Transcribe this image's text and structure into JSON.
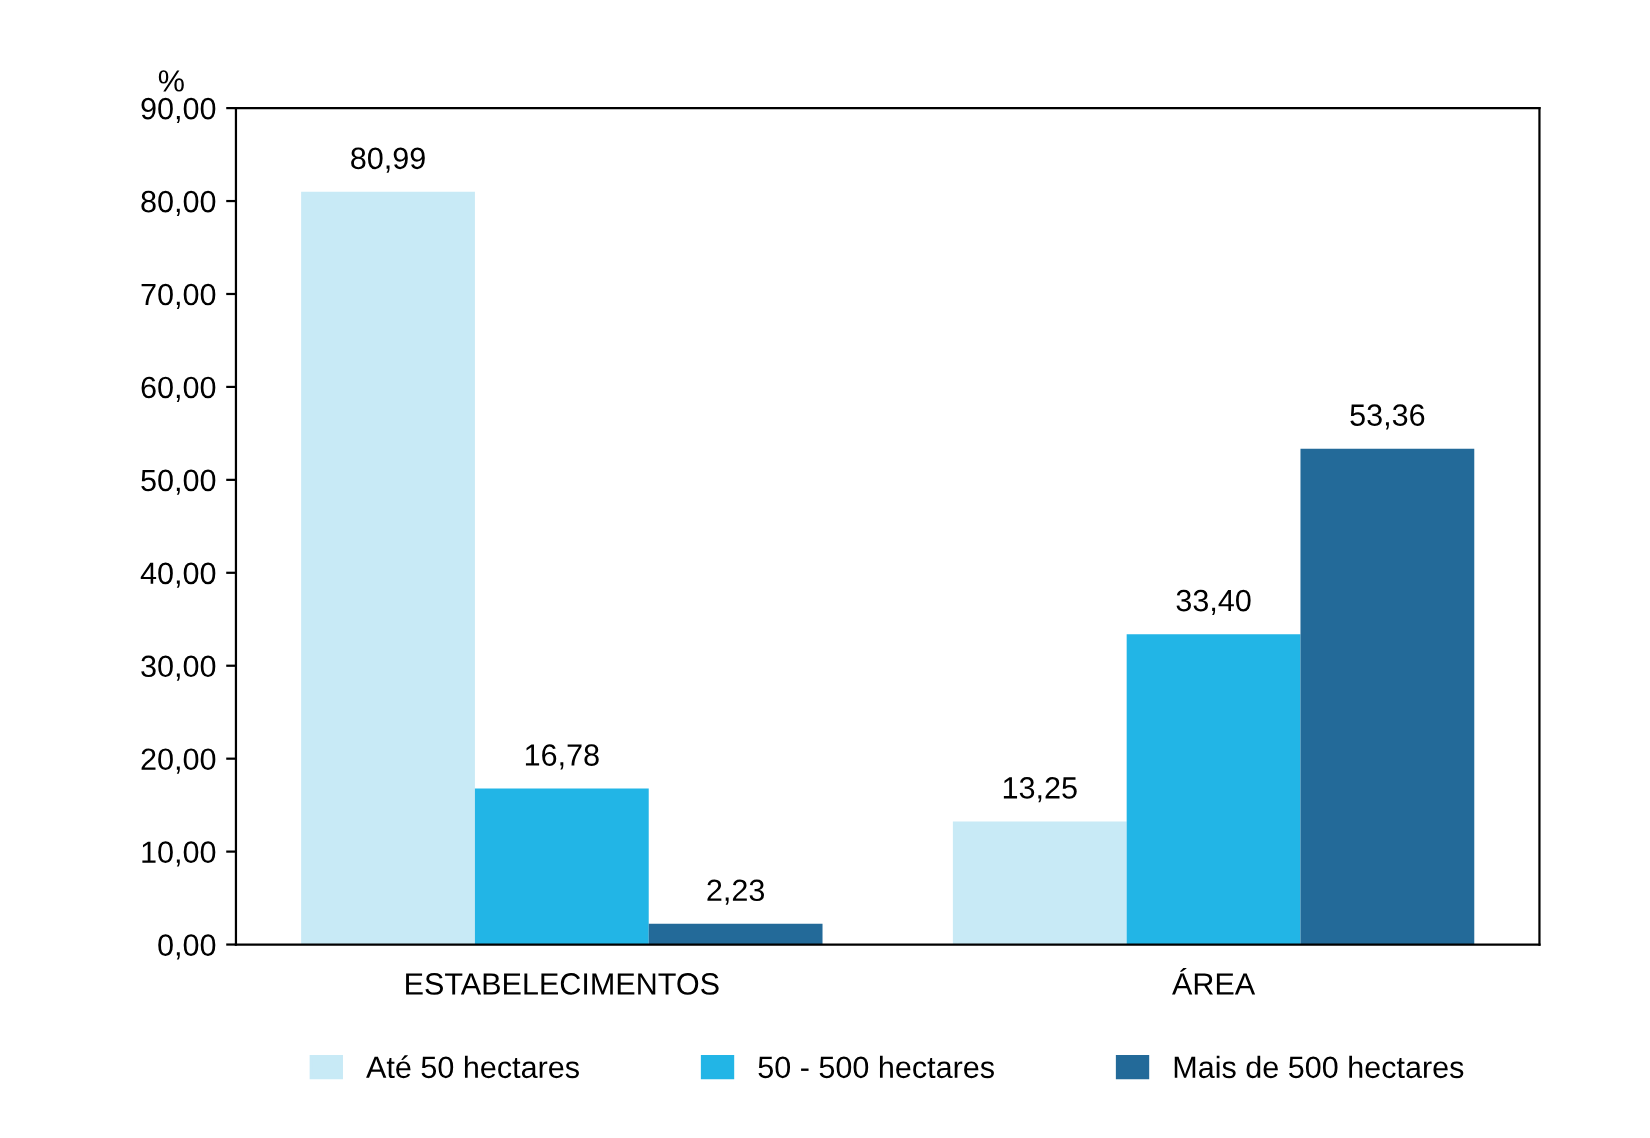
{
  "chart_data": {
    "type": "bar",
    "ylabel": "%",
    "categories": [
      "ESTABELECIMENTOS",
      "ÁREA"
    ],
    "series": [
      {
        "name": "Até 50 hectares",
        "color": "#c8eaf6",
        "values": [
          80.99,
          13.25
        ],
        "value_labels": [
          "80,99",
          "13,25"
        ]
      },
      {
        "name": "50 - 500 hectares",
        "color": "#22b5e6",
        "values": [
          16.78,
          33.4
        ],
        "value_labels": [
          "16,78",
          "33,40"
        ]
      },
      {
        "name": "Mais de 500 hectares",
        "color": "#236a99",
        "values": [
          2.23,
          53.36
        ],
        "value_labels": [
          "2,23",
          "53,36"
        ]
      }
    ],
    "ylim": [
      0,
      90
    ],
    "yticks": [
      {
        "value": 0,
        "label": "0,00"
      },
      {
        "value": 10,
        "label": "10,00"
      },
      {
        "value": 20,
        "label": "20,00"
      },
      {
        "value": 30,
        "label": "30,00"
      },
      {
        "value": 40,
        "label": "40,00"
      },
      {
        "value": 50,
        "label": "50,00"
      },
      {
        "value": 60,
        "label": "60,00"
      },
      {
        "value": 70,
        "label": "70,00"
      },
      {
        "value": 80,
        "label": "80,00"
      },
      {
        "value": 90,
        "label": "90,00"
      }
    ],
    "grid": false,
    "legend": "bottom"
  }
}
